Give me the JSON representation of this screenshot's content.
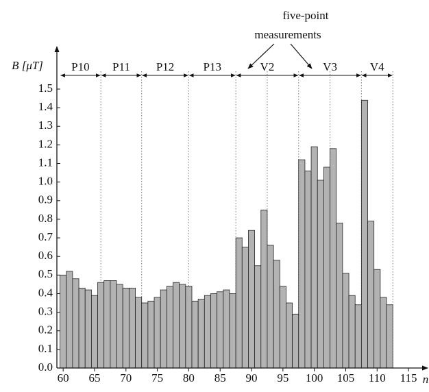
{
  "chart_data": {
    "type": "bar",
    "y_label": "B [μT]",
    "x_label": "n",
    "annotation": "five-point measurements",
    "categories": [
      60,
      61,
      62,
      63,
      64,
      65,
      66,
      67,
      68,
      69,
      70,
      71,
      72,
      73,
      74,
      75,
      76,
      77,
      78,
      79,
      80,
      81,
      82,
      83,
      84,
      85,
      86,
      87,
      88,
      89,
      90,
      91,
      92,
      93,
      94,
      95,
      96,
      97,
      98,
      99,
      100,
      101,
      102,
      103,
      104,
      105,
      106,
      107,
      108,
      109,
      110,
      111,
      112
    ],
    "values": [
      0.5,
      0.52,
      0.48,
      0.43,
      0.42,
      0.39,
      0.46,
      0.47,
      0.47,
      0.45,
      0.43,
      0.43,
      0.38,
      0.35,
      0.36,
      0.38,
      0.42,
      0.44,
      0.46,
      0.45,
      0.44,
      0.36,
      0.37,
      0.39,
      0.4,
      0.41,
      0.42,
      0.4,
      0.7,
      0.65,
      0.74,
      0.55,
      0.85,
      0.66,
      0.58,
      0.44,
      0.35,
      0.29,
      1.12,
      1.06,
      1.19,
      1.01,
      1.08,
      1.18,
      0.78,
      0.51,
      0.39,
      0.34,
      1.44,
      0.79,
      0.53,
      0.38,
      0.34
    ],
    "color": "#b3b3b3",
    "xlim": [
      59,
      117.5
    ],
    "xticks": [
      60,
      65,
      70,
      75,
      80,
      85,
      90,
      95,
      100,
      105,
      110,
      115
    ],
    "ylim": [
      0,
      1.5
    ],
    "yticks": [
      {
        "value": 0,
        "label": "0.0"
      },
      0.1,
      0.2,
      0.3,
      0.4,
      0.5,
      0.6,
      0.7,
      0.8,
      0.9,
      {
        "value": 1,
        "label": "1.0"
      },
      1.1,
      1.2,
      1.3,
      1.4,
      1.5
    ],
    "regions": [
      {
        "label": "P10",
        "from": 59.5,
        "to": 66
      },
      {
        "label": "P11",
        "from": 66,
        "to": 72.5
      },
      {
        "label": "P12",
        "from": 72.5,
        "to": 80
      },
      {
        "label": "P13",
        "from": 80,
        "to": 87.5
      },
      {
        "label": "V2",
        "from": 87.5,
        "to": 97.5
      },
      {
        "label": "V3",
        "from": 97.5,
        "to": 107.5
      },
      {
        "label": "V4",
        "from": 107.5,
        "to": 112.5
      }
    ],
    "dividers": [
      66,
      72.5,
      80,
      87.5,
      92.5,
      97.5,
      102.5,
      107.5,
      112.5
    ]
  }
}
